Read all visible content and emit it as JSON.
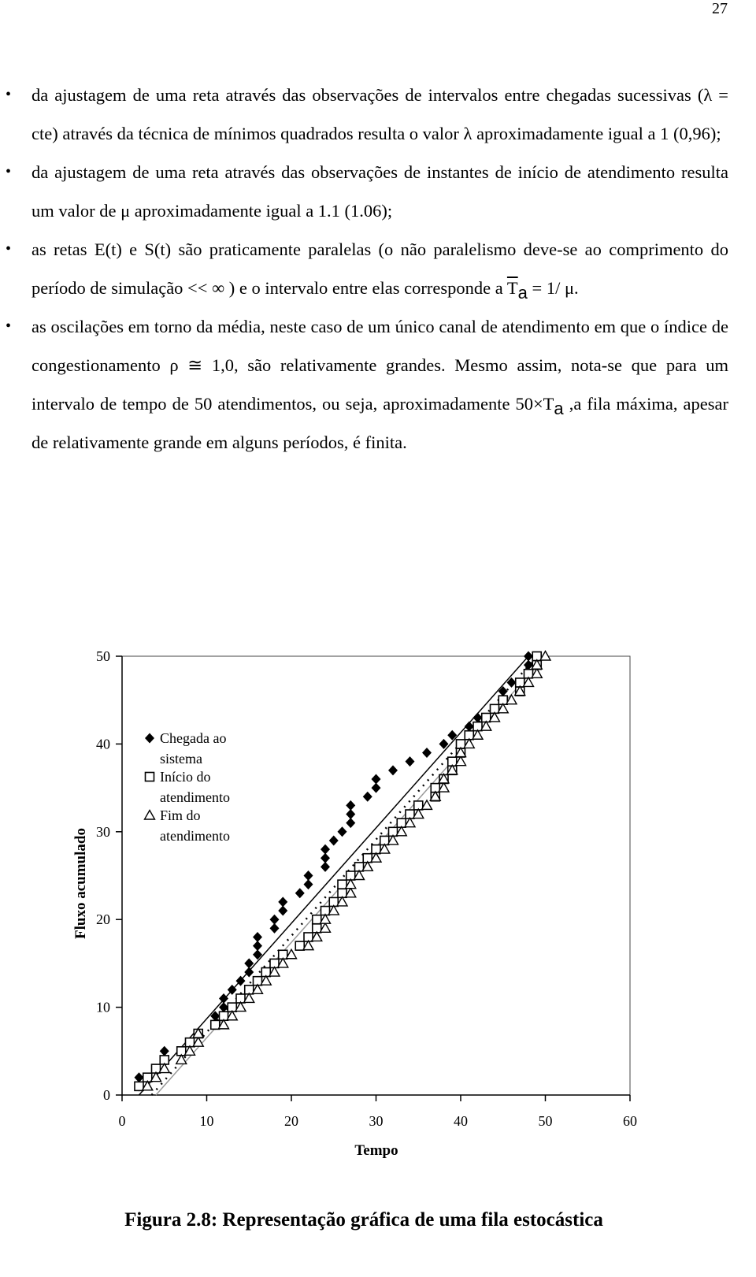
{
  "page_number": "27",
  "bullets": [
    [
      "da ajustagem de uma reta através das observações de intervalos entre chegadas sucessivas (λ = cte) através da técnica de mínimos quadrados resulta o valor λ aproximadamente igual a 1 (0,96);"
    ],
    [
      "da ajustagem de uma reta através das observações de instantes  de início de atendimento resulta um valor de μ aproximadamente igual a 1.1 (1.06);"
    ],
    [
      "as retas E(t) e S(t) são praticamente paralelas (o não paralelismo deve-se ao comprimento do período de simulação <<  ∞  ) e o intervalo entre elas corresponde a ",
      "T",
      "a",
      " = 1/ μ."
    ],
    [
      "as oscilações em torno da média, neste caso de um único canal de atendimento em que o índice de congestionamento ρ ≅ 1,0, são relativamente grandes. Mesmo assim, nota-se que para um intervalo de tempo de 50 atendimentos, ou seja, aproximadamente 50×T",
      "a",
      " ,a fila máxima, apesar de relativamente grande em alguns períodos, é finita."
    ]
  ],
  "chart_data": {
    "type": "scatter",
    "x_label": "Tempo",
    "y_label": "Fluxo acumulado",
    "xlim": [
      0,
      60
    ],
    "ylim": [
      0,
      50
    ],
    "xticks": [
      0,
      10,
      20,
      30,
      40,
      50,
      60
    ],
    "yticks": [
      0,
      10,
      20,
      30,
      40,
      50
    ],
    "series": [
      {
        "name": "Chegada ao sistema",
        "marker": "diamond",
        "color": "#000000",
        "x": [
          2,
          2,
          4,
          5,
          5,
          8,
          9,
          11,
          11,
          12,
          12,
          13,
          14,
          15,
          15,
          16,
          16,
          16,
          18,
          18,
          19,
          19,
          21,
          22,
          22,
          24,
          24,
          24,
          25,
          26,
          27,
          27,
          27,
          29,
          30,
          30,
          32,
          34,
          36,
          38,
          39,
          41,
          42,
          44,
          45,
          45,
          46,
          48,
          48,
          48
        ],
        "values": [
          1,
          2,
          3,
          4,
          5,
          6,
          7,
          8,
          9,
          10,
          11,
          12,
          13,
          14,
          15,
          16,
          17,
          18,
          19,
          20,
          21,
          22,
          23,
          24,
          25,
          26,
          27,
          28,
          29,
          30,
          31,
          32,
          33,
          34,
          35,
          36,
          37,
          38,
          39,
          40,
          41,
          42,
          43,
          44,
          45,
          46,
          47,
          48,
          49,
          50
        ]
      },
      {
        "name": "Início do atendimento",
        "marker": "square",
        "color": "#000000",
        "x": [
          2,
          3,
          4,
          5,
          7,
          8,
          9,
          11,
          12,
          13,
          14,
          15,
          16,
          17,
          18,
          19,
          21,
          22,
          23,
          23,
          24,
          25,
          26,
          26,
          27,
          28,
          29,
          30,
          31,
          32,
          33,
          34,
          35,
          37,
          37,
          38,
          39,
          39,
          40,
          40,
          41,
          42,
          43,
          44,
          45,
          47,
          47,
          48,
          49,
          49
        ],
        "values": [
          1,
          2,
          3,
          4,
          5,
          6,
          7,
          8,
          9,
          10,
          11,
          12,
          13,
          14,
          15,
          16,
          17,
          18,
          19,
          20,
          21,
          22,
          23,
          24,
          25,
          26,
          27,
          28,
          29,
          30,
          31,
          32,
          33,
          34,
          35,
          36,
          37,
          38,
          39,
          40,
          41,
          42,
          43,
          44,
          45,
          46,
          47,
          48,
          49,
          50
        ]
      },
      {
        "name": "Fim do atendimento",
        "marker": "triangle",
        "color": "#000000",
        "x": [
          3,
          4,
          5,
          7,
          8,
          9,
          9,
          12,
          13,
          14,
          15,
          16,
          17,
          18,
          19,
          20,
          22,
          23,
          24,
          24,
          25,
          26,
          27,
          27,
          28,
          29,
          30,
          31,
          32,
          33,
          34,
          35,
          36,
          37,
          38,
          38,
          39,
          40,
          40,
          41,
          42,
          43,
          44,
          45,
          46,
          47,
          48,
          49,
          49,
          50
        ],
        "values": [
          1,
          2,
          3,
          4,
          5,
          6,
          7,
          8,
          9,
          10,
          11,
          12,
          13,
          14,
          15,
          16,
          17,
          18,
          19,
          20,
          21,
          22,
          23,
          24,
          25,
          26,
          27,
          28,
          29,
          30,
          31,
          32,
          33,
          34,
          35,
          36,
          37,
          38,
          39,
          40,
          41,
          42,
          43,
          44,
          45,
          46,
          47,
          48,
          49,
          50
        ]
      }
    ],
    "lines": [
      {
        "x": [
          2,
          48
        ],
        "values": [
          0,
          50
        ],
        "color": "#000000",
        "dash": "none"
      },
      {
        "x": [
          3.5,
          49
        ],
        "values": [
          0,
          50
        ],
        "color": "#000000",
        "dash": "2 7"
      },
      {
        "x": [
          4,
          50
        ],
        "values": [
          0,
          50
        ],
        "color": "#999999",
        "dash": "none"
      }
    ]
  },
  "caption": "Figura 2.8: Representação gráfica de uma fila estocástica"
}
